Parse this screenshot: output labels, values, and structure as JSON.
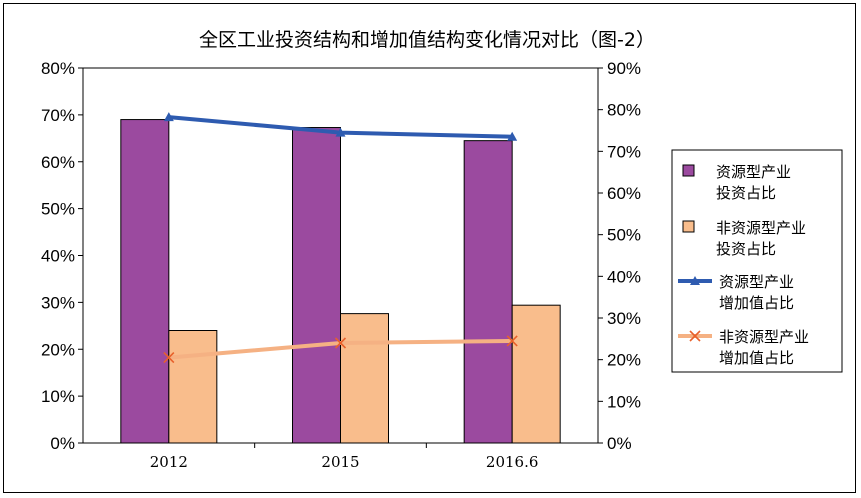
{
  "chart_data": {
    "type": "bar",
    "title": "全区工业投资结构和增加值结构变化情况对比（图-2）",
    "categories": [
      "2012",
      "2015",
      "2016.6"
    ],
    "y_left": {
      "min": 0,
      "max": 0.8,
      "step": 0.1,
      "ticks": [
        "0%",
        "10%",
        "20%",
        "30%",
        "40%",
        "50%",
        "60%",
        "70%",
        "80%"
      ]
    },
    "y_right": {
      "min": 0,
      "max": 0.9,
      "step": 0.1,
      "ticks": [
        "0%",
        "10%",
        "20%",
        "30%",
        "40%",
        "50%",
        "60%",
        "70%",
        "80%",
        "90%"
      ]
    },
    "grid": false,
    "legend_position": "right",
    "series": [
      {
        "name": "资源型产业投资占比",
        "legend_lines": [
          "资源型产业",
          "投资占比"
        ],
        "type": "bar",
        "axis": "left",
        "color": "#9B4A9F",
        "values": [
          0.69,
          0.673,
          0.645
        ]
      },
      {
        "name": "非资源型产业投资占比",
        "legend_lines": [
          "非资源型产业",
          "投资占比"
        ],
        "type": "bar",
        "axis": "left",
        "color": "#F9BD8C",
        "values": [
          0.24,
          0.276,
          0.294
        ]
      },
      {
        "name": "资源型产业增加值占比",
        "legend_lines": [
          "资源型产业",
          "增加值占比"
        ],
        "type": "line",
        "axis": "right",
        "color": "#2E5BB0",
        "marker": "triangle",
        "values": [
          0.782,
          0.745,
          0.735
        ]
      },
      {
        "name": "非资源型产业增加值占比",
        "legend_lines": [
          "非资源型产业",
          "增加值占比"
        ],
        "type": "line",
        "axis": "right",
        "color": "#F5B183",
        "marker": "x",
        "values": [
          0.205,
          0.24,
          0.245
        ]
      }
    ]
  }
}
